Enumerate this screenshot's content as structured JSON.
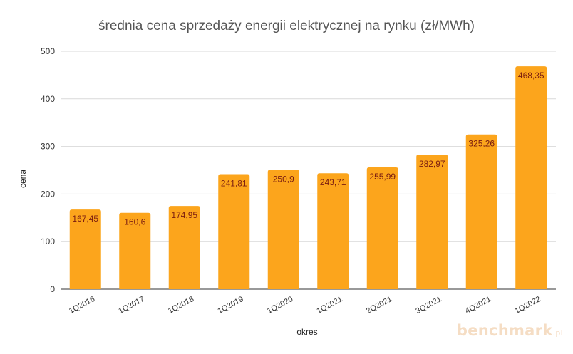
{
  "chart_data": {
    "type": "bar",
    "title": "średnia cena sprzedaży energii elektrycznej na rynku (zł/MWh)",
    "xlabel": "okres",
    "ylabel": "cena",
    "categories": [
      "1Q2016",
      "1Q2017",
      "1Q2018",
      "1Q2019",
      "1Q2020",
      "1Q2021",
      "2Q2021",
      "3Q2021",
      "4Q2021",
      "1Q2022"
    ],
    "values": [
      167.45,
      160.6,
      174.95,
      241.81,
      250.9,
      243.71,
      255.99,
      282.97,
      325.26,
      468.35
    ],
    "value_labels": [
      "167,45",
      "160,6",
      "174,95",
      "241,81",
      "250,9",
      "243,71",
      "255,99",
      "282,97",
      "325,26",
      "468,35"
    ],
    "ylim": [
      0,
      500
    ],
    "yticks": [
      0,
      100,
      200,
      300,
      400,
      500
    ],
    "grid": true,
    "legend": "none",
    "bar_color": "#fca51c",
    "label_color": "#7a1c10"
  },
  "watermark": {
    "text": "benchmark",
    "suffix": ".pl"
  }
}
